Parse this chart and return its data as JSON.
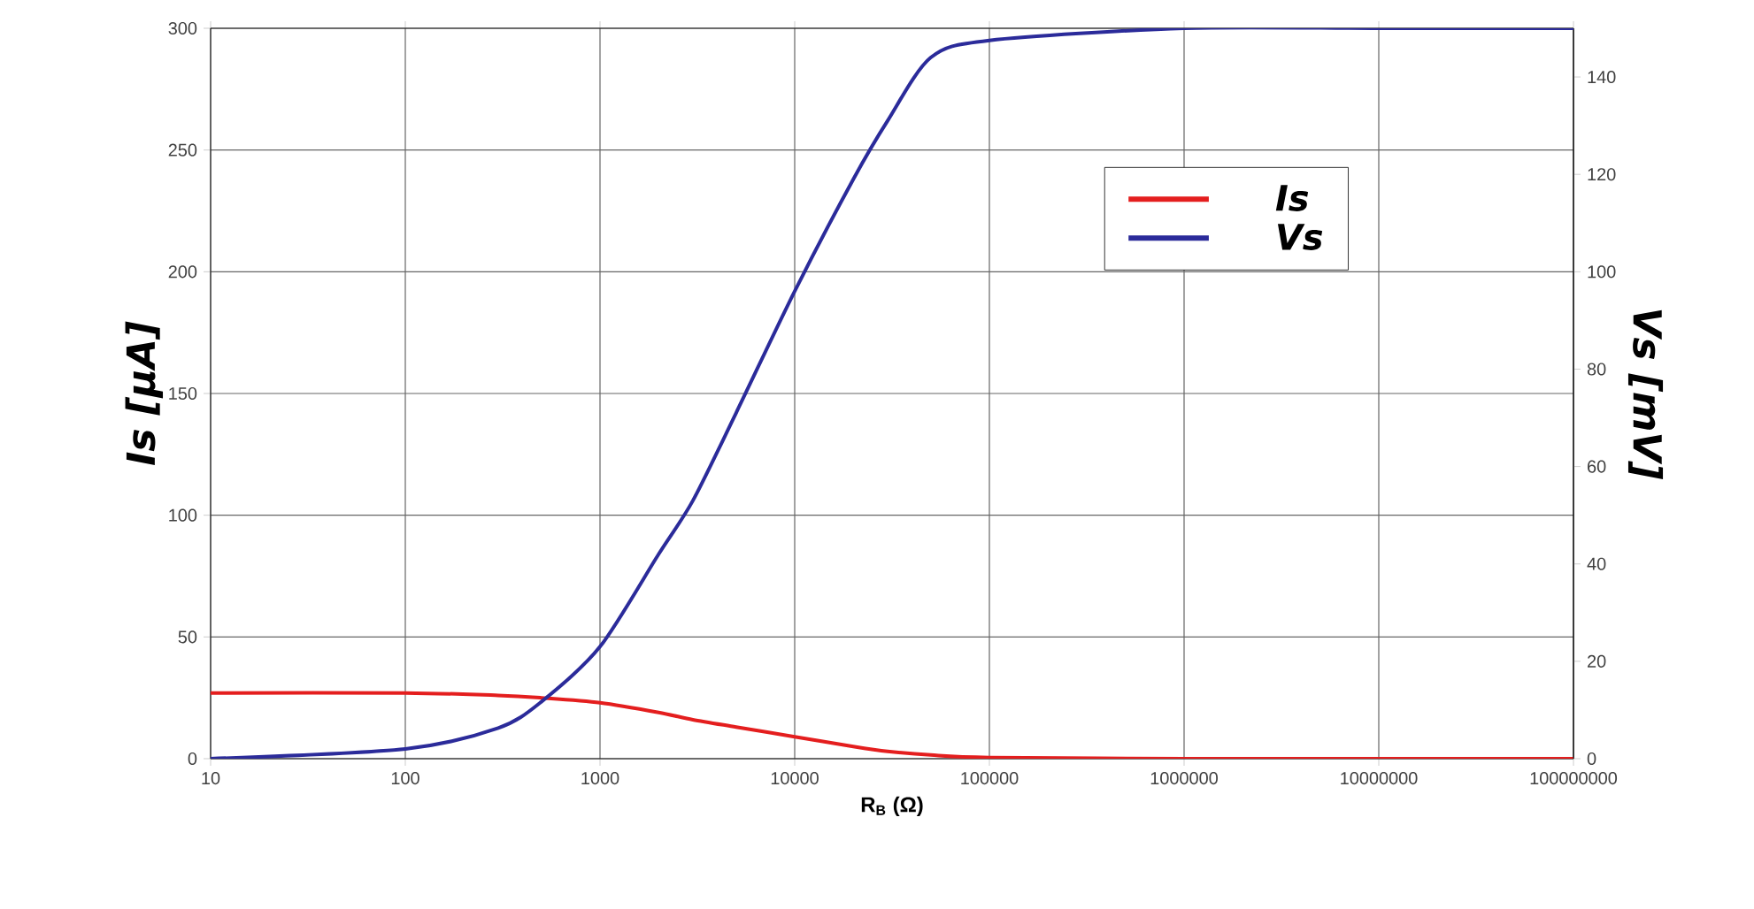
{
  "chart_data": {
    "type": "line",
    "xlabel": "R$_{B}$ (Ω)",
    "ylabel": "Is [μA]",
    "y2label": "Vs [mV]",
    "log": "x",
    "x": [
      10,
      100,
      300,
      500,
      1000,
      2000,
      3000,
      5000,
      10000,
      20000,
      30000,
      50000,
      100000,
      1000000,
      10000000,
      100000000
    ],
    "series": [
      {
        "name": "Is",
        "color": "#e41e1e",
        "values": [
          27,
          27,
          26,
          25,
          23,
          19,
          16,
          13,
          9,
          5,
          3,
          1.5,
          0.5,
          0,
          0,
          0
        ]
      },
      {
        "name": "Vs",
        "color": "#2b2b9a",
        "axis": "y2",
        "values": [
          0,
          2,
          6.3,
          11.7,
          23,
          42,
          53,
          71,
          96,
          119,
          131,
          144,
          147.5,
          150,
          150,
          150
        ]
      }
    ],
    "xlim": [
      10,
      100000000
    ],
    "xticks": [
      10,
      100,
      1000,
      10000,
      100000,
      1000000,
      10000000,
      100000000
    ],
    "ylim": [
      0,
      300
    ],
    "yticks": [
      0,
      50,
      100,
      150,
      200,
      250,
      300
    ],
    "y2lim": [
      0,
      150
    ],
    "y2ticks": [
      0,
      20,
      40,
      60,
      80,
      100,
      120,
      140
    ],
    "grid": true,
    "legend": "top right",
    "marker": "none",
    "line_style": "solid"
  }
}
